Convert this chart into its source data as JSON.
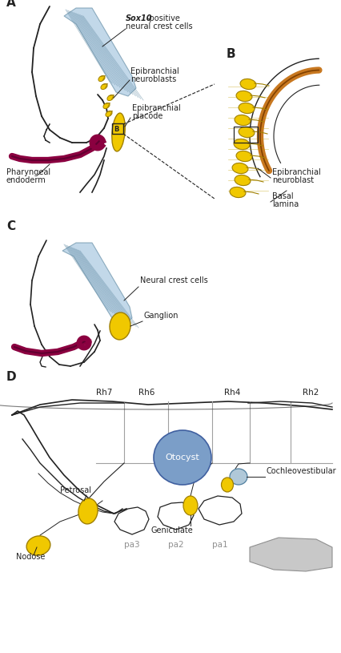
{
  "bg_color": "#ffffff",
  "label_A": "A",
  "label_B": "B",
  "label_C": "C",
  "label_D": "D",
  "color_yellow_fill": "#F0C800",
  "color_blue_cells": "#A8C8E0",
  "color_otocyst": "#7B9EC8",
  "color_pharyngeal": "#8B0040",
  "color_orange_lamina": "#C87820",
  "color_outline": "#222222",
  "color_gray": "#C0C0C0"
}
